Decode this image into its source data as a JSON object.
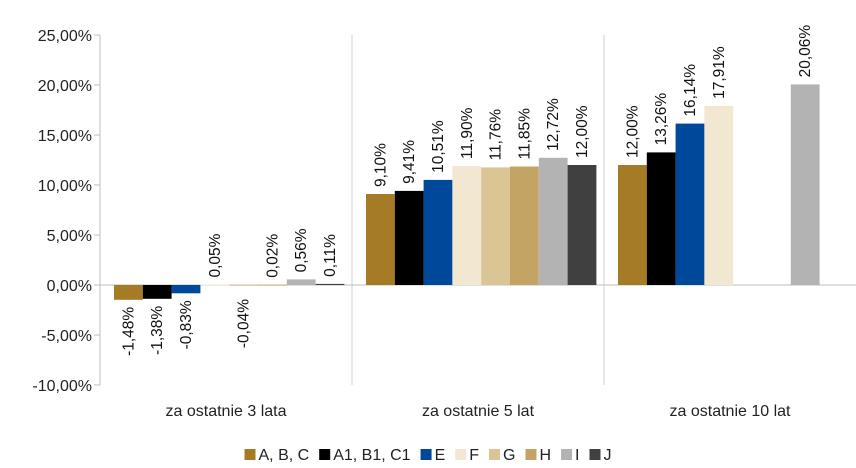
{
  "chart_data": {
    "type": "bar",
    "categories": [
      "za ostatnie 3 lata",
      "za ostatnie 5 lat",
      "za ostatnie 10 lat"
    ],
    "series": [
      {
        "name": "A, B, C",
        "color": "#A57B26",
        "values": [
          -1.48,
          9.1,
          12.0
        ],
        "labels": [
          "-1,48%",
          "9,10%",
          "12,00%"
        ]
      },
      {
        "name": "A1, B1, C1",
        "color": "#000000",
        "values": [
          -1.38,
          9.41,
          13.26
        ],
        "labels": [
          "-1,38%",
          "9,41%",
          "13,26%"
        ]
      },
      {
        "name": "E",
        "color": "#00489A",
        "values": [
          -0.83,
          10.51,
          16.14
        ],
        "labels": [
          "-0,83%",
          "10,51%",
          "16,14%"
        ]
      },
      {
        "name": "F",
        "color": "#F2E7D1",
        "values": [
          0.05,
          11.9,
          17.91
        ],
        "labels": [
          "0,05%",
          "11,90%",
          "17,91%"
        ]
      },
      {
        "name": "G",
        "color": "#DCC594",
        "values": [
          -0.04,
          11.76,
          null
        ],
        "labels": [
          "-0,04%",
          "11,76%",
          ""
        ]
      },
      {
        "name": "H",
        "color": "#C4A464",
        "values": [
          0.02,
          11.85,
          null
        ],
        "labels": [
          "0,02%",
          "11,85%",
          ""
        ]
      },
      {
        "name": "I",
        "color": "#B3B3B3",
        "values": [
          0.56,
          12.72,
          20.06
        ],
        "labels": [
          "0,56%",
          "12,72%",
          "20,06%"
        ]
      },
      {
        "name": "J",
        "color": "#404040",
        "values": [
          0.11,
          12.0,
          null
        ],
        "labels": [
          "0,11%",
          "12,00%",
          ""
        ]
      }
    ],
    "ylim": [
      -10,
      25
    ],
    "yticks": [
      25,
      20,
      15,
      10,
      5,
      0,
      -5,
      -10
    ],
    "ytick_labels": [
      "25,00%",
      "20,00%",
      "15,00%",
      "10,00%",
      "5,00%",
      "0,00%",
      "-5,00%",
      "-10,00%"
    ],
    "legend_position": "bottom",
    "grid": false
  }
}
